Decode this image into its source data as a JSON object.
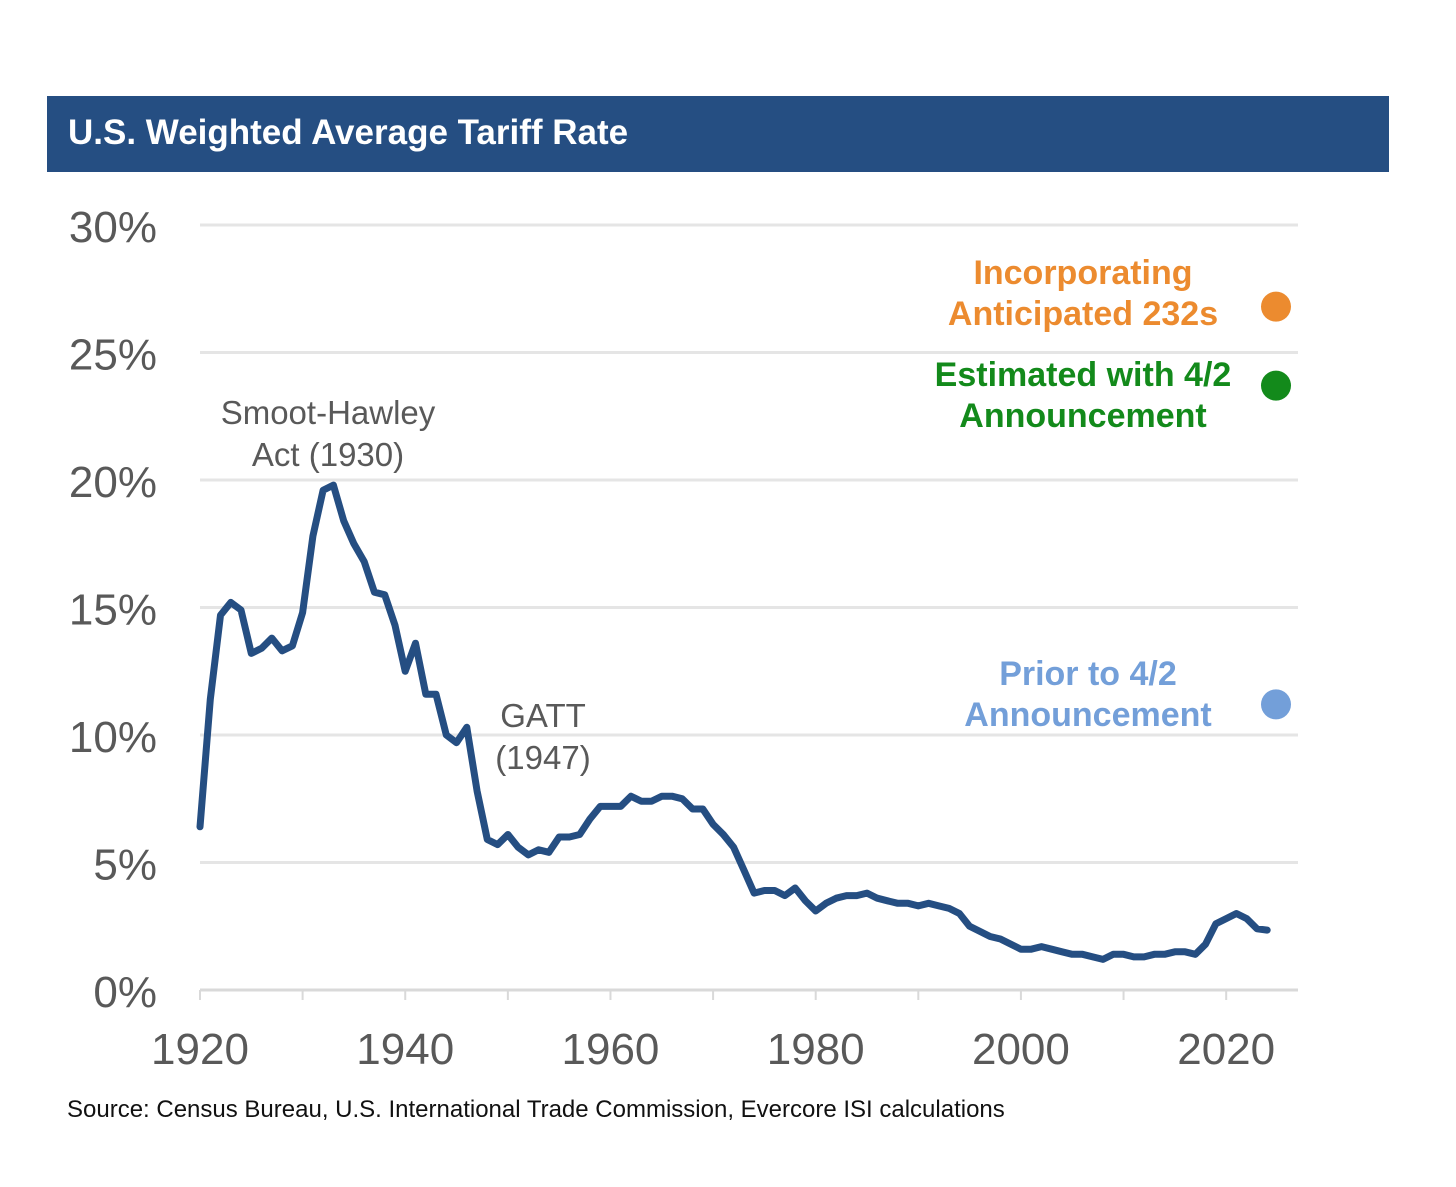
{
  "header": {
    "title": "U.S. Weighted Average Tariff Rate"
  },
  "footer": {
    "source": "Source: Census Bureau, U.S. International Trade Commission, Evercore ISI calculations"
  },
  "colors": {
    "title_bar": "#254e82",
    "line": "#254e82",
    "grid": "#e5e5e5",
    "axis_text": "#595959",
    "annotation_text": "#595959",
    "orange": "#ec8b2f",
    "green": "#138a1b",
    "blue": "#739fd9"
  },
  "chart_data": {
    "type": "line",
    "title": "U.S. Weighted Average Tariff Rate",
    "xlabel": "",
    "ylabel": "",
    "xlim": [
      1920,
      2027
    ],
    "ylim": [
      0,
      30
    ],
    "x_ticks": [
      "1920",
      "1940",
      "1960",
      "1980",
      "2000",
      "2020"
    ],
    "y_ticks": [
      "0%",
      "5%",
      "10%",
      "15%",
      "20%",
      "25%",
      "30%"
    ],
    "grid": "horizontal",
    "legend": "none",
    "series": [
      {
        "color": "#254e82",
        "points": [
          [
            1920,
            6.4
          ],
          [
            1921,
            11.4
          ],
          [
            1922,
            14.7
          ],
          [
            1923,
            15.2
          ],
          [
            1924,
            14.9
          ],
          [
            1925,
            13.2
          ],
          [
            1926,
            13.4
          ],
          [
            1927,
            13.8
          ],
          [
            1928,
            13.3
          ],
          [
            1929,
            13.5
          ],
          [
            1930,
            14.8
          ],
          [
            1931,
            17.8
          ],
          [
            1932,
            19.6
          ],
          [
            1933,
            19.8
          ],
          [
            1934,
            18.4
          ],
          [
            1935,
            17.5
          ],
          [
            1936,
            16.8
          ],
          [
            1937,
            15.6
          ],
          [
            1938,
            15.5
          ],
          [
            1939,
            14.3
          ],
          [
            1940,
            12.5
          ],
          [
            1941,
            13.6
          ],
          [
            1942,
            11.6
          ],
          [
            1943,
            11.6
          ],
          [
            1944,
            10.0
          ],
          [
            1945,
            9.7
          ],
          [
            1946,
            10.3
          ],
          [
            1947,
            7.8
          ],
          [
            1948,
            5.9
          ],
          [
            1949,
            5.7
          ],
          [
            1950,
            6.1
          ],
          [
            1951,
            5.6
          ],
          [
            1952,
            5.3
          ],
          [
            1953,
            5.5
          ],
          [
            1954,
            5.4
          ],
          [
            1955,
            6.0
          ],
          [
            1956,
            6.0
          ],
          [
            1957,
            6.1
          ],
          [
            1958,
            6.7
          ],
          [
            1959,
            7.2
          ],
          [
            1960,
            7.2
          ],
          [
            1961,
            7.2
          ],
          [
            1962,
            7.6
          ],
          [
            1963,
            7.4
          ],
          [
            1964,
            7.4
          ],
          [
            1965,
            7.6
          ],
          [
            1966,
            7.6
          ],
          [
            1967,
            7.5
          ],
          [
            1968,
            7.1
          ],
          [
            1969,
            7.1
          ],
          [
            1970,
            6.5
          ],
          [
            1971,
            6.1
          ],
          [
            1972,
            5.6
          ],
          [
            1973,
            4.7
          ],
          [
            1974,
            3.8
          ],
          [
            1975,
            3.9
          ],
          [
            1976,
            3.9
          ],
          [
            1977,
            3.7
          ],
          [
            1978,
            4.0
          ],
          [
            1979,
            3.5
          ],
          [
            1980,
            3.1
          ],
          [
            1981,
            3.4
          ],
          [
            1982,
            3.6
          ],
          [
            1983,
            3.7
          ],
          [
            1984,
            3.7
          ],
          [
            1985,
            3.8
          ],
          [
            1986,
            3.6
          ],
          [
            1987,
            3.5
          ],
          [
            1988,
            3.4
          ],
          [
            1989,
            3.4
          ],
          [
            1990,
            3.3
          ],
          [
            1991,
            3.4
          ],
          [
            1992,
            3.3
          ],
          [
            1993,
            3.2
          ],
          [
            1994,
            3.0
          ],
          [
            1995,
            2.5
          ],
          [
            1996,
            2.3
          ],
          [
            1997,
            2.1
          ],
          [
            1998,
            2.0
          ],
          [
            1999,
            1.8
          ],
          [
            2000,
            1.6
          ],
          [
            2001,
            1.6
          ],
          [
            2002,
            1.7
          ],
          [
            2003,
            1.6
          ],
          [
            2004,
            1.5
          ],
          [
            2005,
            1.4
          ],
          [
            2006,
            1.4
          ],
          [
            2007,
            1.3
          ],
          [
            2008,
            1.2
          ],
          [
            2009,
            1.4
          ],
          [
            2010,
            1.4
          ],
          [
            2011,
            1.3
          ],
          [
            2012,
            1.3
          ],
          [
            2013,
            1.4
          ],
          [
            2014,
            1.4
          ],
          [
            2015,
            1.5
          ],
          [
            2016,
            1.5
          ],
          [
            2017,
            1.4
          ],
          [
            2018,
            1.8
          ],
          [
            2019,
            2.6
          ],
          [
            2020,
            2.8
          ],
          [
            2021,
            3.0
          ],
          [
            2022,
            2.8
          ],
          [
            2023,
            2.4
          ],
          [
            2024,
            2.35
          ]
        ]
      }
    ],
    "markers": [
      {
        "label_lines": [
          "Incorporating",
          "Anticipated 232s"
        ],
        "color": "#ec8b2f",
        "value": 26.8
      },
      {
        "label_lines": [
          "Estimated with 4/2",
          "Announcement"
        ],
        "color": "#138a1b",
        "value": 23.7
      },
      {
        "label_lines": [
          "Prior to 4/2",
          "Announcement"
        ],
        "color": "#739fd9",
        "value": 11.2
      }
    ],
    "annotations": [
      {
        "lines": [
          "Smoot-Hawley",
          "Act (1930)"
        ]
      },
      {
        "lines": [
          "GATT",
          "(1947)"
        ]
      }
    ]
  }
}
